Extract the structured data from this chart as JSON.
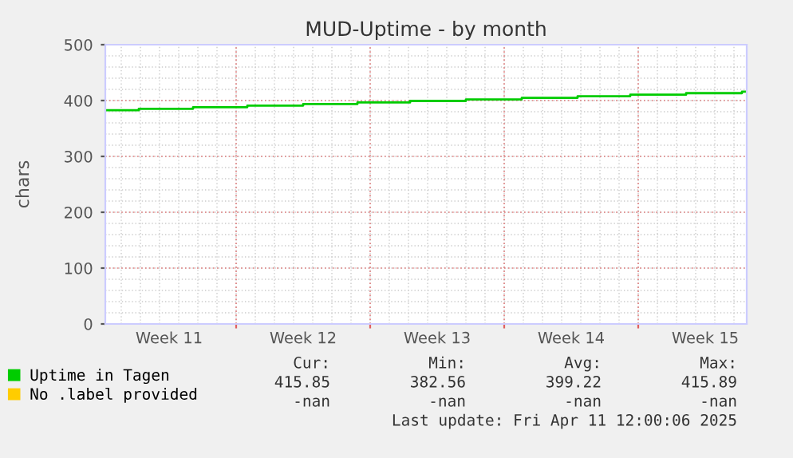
{
  "chart_data": {
    "type": "step",
    "title": "MUD-Uptime - by month",
    "ylabel": "chars",
    "x": [
      "2025-03-10T04:00",
      "2025-03-11T22:00",
      "2025-03-14T18:00",
      "2025-03-17T14:00",
      "2025-03-20T12:00",
      "2025-03-23T08:00",
      "2025-03-26T02:00",
      "2025-03-29T00:00",
      "2025-03-31T22:00",
      "2025-04-03T20:00",
      "2025-04-06T14:00",
      "2025-04-09T12:00",
      "2025-04-12T10:00",
      "2025-04-12T16:00"
    ],
    "series": [
      {
        "name": "Uptime in Tagen",
        "color": "#00cc00",
        "values": [
          382.56,
          385.3,
          388.1,
          390.9,
          393.7,
          396.5,
          399.3,
          402.1,
          404.9,
          407.7,
          410.5,
          413.2,
          415.85,
          415.85
        ]
      },
      {
        "name": "No .label provided",
        "color": "#ffcc00",
        "values": [
          null,
          null,
          null,
          null,
          null,
          null,
          null,
          null,
          null,
          null,
          null,
          null,
          null,
          null
        ]
      }
    ],
    "xlim": [
      "2025-03-10T04:00",
      "2025-04-12T16:00"
    ],
    "xticks": [
      {
        "value": "2025-03-13T12:00",
        "label": "Week 11"
      },
      {
        "value": "2025-03-17",
        "label": null
      },
      {
        "value": "2025-03-20T12:00",
        "label": "Week 12"
      },
      {
        "value": "2025-03-24",
        "label": null
      },
      {
        "value": "2025-03-27T12:00",
        "label": "Week 13"
      },
      {
        "value": "2025-03-31",
        "label": null
      },
      {
        "value": "2025-04-03T12:00",
        "label": "Week 14"
      },
      {
        "value": "2025-04-07",
        "label": null
      },
      {
        "value": "2025-04-10T12:00",
        "label": "Week 15"
      }
    ],
    "ylim": [
      0,
      500
    ],
    "yticks": [
      0,
      100,
      200,
      300,
      400,
      500
    ],
    "grid": true,
    "legend": "bottom",
    "annotations": [
      "Cur:",
      "Min:",
      "Avg:",
      "Max:",
      "415.85",
      "382.56",
      "399.22",
      "415.89",
      "-nan",
      "-nan",
      "-nan",
      "-nan",
      "Last update: Fri Apr 11 12:00:06 2025"
    ]
  }
}
